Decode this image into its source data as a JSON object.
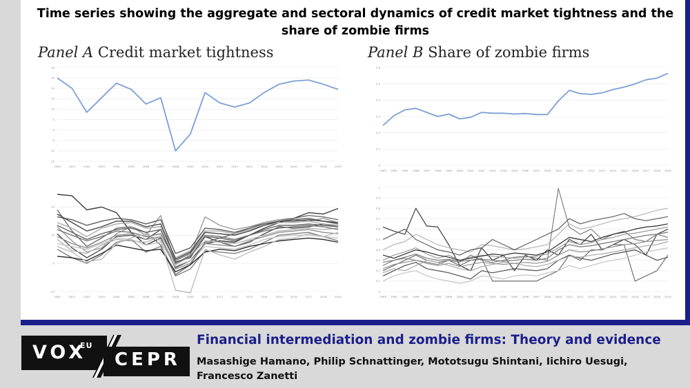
{
  "figure_title": "Time series showing the aggregate and sectoral dynamics of credit market tightness and the share of zombie firms",
  "panel_a": {
    "label": "Panel A",
    "title": "Credit market tightness"
  },
  "panel_b": {
    "label": "Panel B",
    "title": "Share of zombie firms"
  },
  "footer": {
    "logo_vox": "VOX",
    "logo_eu": "EU",
    "logo_cepr": "CEPR",
    "column_title": "Financial intermediation and zombie firms: Theory and evidence",
    "authors": "Masashige Hamano, Philip Schnattinger, Mototsugu Shintani, Iichiro Uesugi, Francesco Zanetti"
  },
  "colors": {
    "frame": "#1a1f8c",
    "aggregate_line": "#7b9fd6",
    "sector_lines": "#555555"
  },
  "chart_data": [
    {
      "id": "A-aggregate",
      "type": "line",
      "x": [
        "2000",
        "2001",
        "2002",
        "2003",
        "2004",
        "2005",
        "2006",
        "2007",
        "2008",
        "2009",
        "2010",
        "2011",
        "2012",
        "2013",
        "2014",
        "2015",
        "2016",
        "2017",
        "2018",
        "2019"
      ],
      "ylim": [
        -15,
        30
      ],
      "yticks": [
        -15,
        -10,
        -5,
        0,
        5,
        10,
        15,
        20,
        25,
        30
      ],
      "series": [
        {
          "values": [
            25,
            20,
            8.5,
            15.5,
            22.5,
            19.5,
            12.5,
            15.5,
            -10,
            -2,
            18,
            13,
            11,
            13,
            18,
            22,
            23.5,
            24,
            22,
            19.5
          ]
        }
      ]
    },
    {
      "id": "A-sectoral",
      "type": "line",
      "x": [
        "2000",
        "2001",
        "2002",
        "2003",
        "2004",
        "2005",
        "2006",
        "2007",
        "2008",
        "2009",
        "2010",
        "2011",
        "2012",
        "2013",
        "2014",
        "2015",
        "2016",
        "2017",
        "2018",
        "2019"
      ],
      "ylim": [
        -25,
        45
      ],
      "yticks": [
        -25,
        -5,
        15,
        35
      ],
      "series": [
        {
          "values": [
            44,
            43,
            33,
            35,
            31,
            17,
            8,
            13,
            -8,
            -3,
            9,
            11,
            10,
            15,
            20,
            24,
            27,
            31,
            30,
            34
          ]
        },
        {
          "values": [
            33,
            18,
            7,
            13,
            20,
            21,
            17,
            8,
            -13,
            -6,
            10,
            13,
            16,
            20,
            24,
            26,
            27,
            29,
            28,
            26
          ]
        },
        {
          "values": [
            21,
            11,
            3,
            6,
            16,
            21,
            15,
            29,
            -5,
            1,
            28,
            22,
            19,
            21,
            24,
            26,
            26,
            25,
            27,
            24
          ]
        },
        {
          "values": [
            16,
            6,
            -1,
            5,
            14,
            15,
            12,
            19,
            -4,
            -1,
            14,
            10,
            7,
            10,
            16,
            21,
            20,
            21,
            23,
            21
          ]
        },
        {
          "values": [
            12,
            4,
            2,
            8,
            12,
            11,
            10,
            14,
            -6,
            0,
            11,
            10,
            9,
            12,
            15,
            18,
            19,
            20,
            19,
            20
          ]
        },
        {
          "values": [
            5,
            -1,
            -5,
            1,
            10,
            12,
            3,
            7,
            -14,
            -9,
            4,
            3,
            2,
            5,
            10,
            15,
            16,
            17,
            14,
            11
          ]
        },
        {
          "values": [
            0,
            -1,
            -3,
            2,
            8,
            6,
            4,
            5,
            -11,
            -6,
            3,
            5,
            4,
            7,
            9,
            11,
            12,
            13,
            12,
            10
          ]
        },
        {
          "values": [
            24,
            20,
            14,
            20,
            23,
            24,
            20,
            21,
            -1,
            4,
            18,
            18,
            16,
            19,
            22,
            24,
            24,
            25,
            23,
            22
          ]
        },
        {
          "values": [
            28,
            26,
            22,
            25,
            27,
            26,
            23,
            26,
            2,
            6,
            20,
            19,
            17,
            20,
            23,
            25,
            26,
            27,
            25,
            23
          ]
        },
        {
          "values": [
            9,
            7,
            5,
            9,
            13,
            12,
            8,
            10,
            -7,
            -3,
            7,
            6,
            5,
            8,
            12,
            14,
            15,
            15,
            14,
            13
          ]
        },
        {
          "values": [
            19,
            15,
            11,
            14,
            18,
            17,
            14,
            16,
            -3,
            2,
            15,
            14,
            12,
            15,
            18,
            20,
            21,
            22,
            21,
            19
          ]
        },
        {
          "values": [
            14,
            9,
            6,
            10,
            15,
            16,
            12,
            14,
            -9,
            -5,
            9,
            8,
            7,
            11,
            14,
            17,
            18,
            19,
            17,
            16
          ]
        },
        {
          "values": [
            30,
            24,
            18,
            21,
            25,
            25,
            21,
            23,
            -2,
            3,
            17,
            16,
            15,
            18,
            22,
            25,
            25,
            26,
            25,
            24
          ]
        },
        {
          "values": [
            7,
            3,
            -4,
            -2,
            9,
            13,
            16,
            11,
            -24,
            -26,
            5,
            1,
            -2,
            3,
            7,
            12,
            13,
            16,
            14,
            17
          ]
        },
        {
          "values": [
            22,
            17,
            12,
            16,
            19,
            20,
            17,
            19,
            -5,
            0,
            14,
            13,
            11,
            15,
            19,
            22,
            22,
            23,
            22,
            21
          ]
        }
      ]
    },
    {
      "id": "B-aggregate",
      "type": "line",
      "x": [
        "1993",
        "1994",
        "1995",
        "1996",
        "1997",
        "1998",
        "1999",
        "2000",
        "2001",
        "2002",
        "2003",
        "2004",
        "2005",
        "2006",
        "2007",
        "2008",
        "2009",
        "2010",
        "2011",
        "2012",
        "2013",
        "2014",
        "2015",
        "2016",
        "2017",
        "2018",
        "2019"
      ],
      "ylim": [
        0,
        0.6
      ],
      "yticks": [
        0,
        0.1,
        0.2,
        0.3,
        0.4,
        0.5,
        0.6
      ],
      "series": [
        {
          "values": [
            0.245,
            0.305,
            0.34,
            0.35,
            0.325,
            0.3,
            0.315,
            0.285,
            0.295,
            0.325,
            0.32,
            0.32,
            0.315,
            0.318,
            0.312,
            0.312,
            0.395,
            0.46,
            0.44,
            0.435,
            0.445,
            0.465,
            0.48,
            0.5,
            0.525,
            0.535,
            0.565
          ]
        }
      ]
    },
    {
      "id": "B-sectoral",
      "type": "line",
      "x": [
        "1993",
        "1994",
        "1995",
        "1996",
        "1997",
        "1998",
        "1999",
        "2000",
        "2001",
        "2002",
        "2003",
        "2004",
        "2005",
        "2006",
        "2007",
        "2008",
        "2009",
        "2010",
        "2011",
        "2012",
        "2013",
        "2014",
        "2015",
        "2016",
        "2017",
        "2018",
        "2019"
      ],
      "ylim": [
        0,
        1
      ],
      "yticks": [
        0,
        0.1,
        0.2,
        0.3,
        0.4,
        0.5,
        0.6,
        0.7,
        0.8,
        0.9,
        1
      ],
      "series": [
        {
          "values": [
            0.62,
            0.58,
            0.55,
            0.8,
            0.63,
            0.62,
            0.45,
            0.25,
            0.2,
            0.42,
            0.3,
            0.35,
            0.2,
            0.35,
            0.3,
            0.4,
            0.35,
            0.5,
            0.45,
            0.55,
            0.4,
            0.45,
            0.5,
            0.45,
            0.35,
            0.55,
            0.6
          ]
        },
        {
          "values": [
            0.2,
            0.25,
            0.3,
            0.35,
            0.3,
            0.28,
            0.3,
            0.25,
            0.3,
            0.32,
            0.1,
            0.1,
            0.1,
            0.1,
            0.1,
            0.15,
            0.2,
            0.35,
            0.3,
            0.4,
            0.4,
            0.45,
            0.45,
            0.1,
            0.15,
            0.2,
            0.35
          ]
        },
        {
          "values": [
            0.3,
            0.35,
            0.38,
            0.42,
            0.36,
            0.32,
            0.35,
            0.3,
            0.33,
            0.35,
            0.34,
            0.33,
            0.32,
            0.33,
            0.34,
            0.36,
            0.42,
            0.48,
            0.45,
            0.47,
            0.5,
            0.52,
            0.55,
            0.56,
            0.58,
            0.6,
            0.62
          ]
        },
        {
          "values": [
            0.15,
            0.2,
            0.25,
            0.28,
            0.22,
            0.2,
            0.18,
            0.15,
            0.12,
            0.2,
            0.18,
            0.2,
            0.22,
            0.21,
            0.2,
            0.22,
            0.3,
            0.35,
            0.32,
            0.3,
            0.33,
            0.36,
            0.38,
            0.4,
            0.35,
            0.3,
            0.33
          ]
        },
        {
          "values": [
            0.4,
            0.45,
            0.48,
            0.55,
            0.5,
            0.45,
            0.42,
            0.4,
            0.38,
            0.45,
            0.44,
            0.42,
            0.4,
            0.41,
            0.43,
            0.45,
            0.55,
            0.65,
            0.6,
            0.62,
            0.65,
            0.68,
            0.7,
            0.72,
            0.75,
            0.78,
            0.8
          ]
        },
        {
          "values": [
            0.25,
            0.3,
            0.32,
            0.3,
            0.28,
            0.26,
            0.3,
            0.28,
            0.35,
            0.3,
            0.28,
            0.3,
            0.33,
            0.34,
            0.32,
            0.3,
            0.99,
            0.62,
            0.55,
            0.6,
            0.5,
            0.55,
            0.58,
            0.5,
            0.48,
            0.55,
            0.52
          ]
        },
        {
          "values": [
            0.35,
            0.32,
            0.36,
            0.4,
            0.38,
            0.35,
            0.33,
            0.3,
            0.32,
            0.34,
            0.36,
            0.35,
            0.37,
            0.36,
            0.35,
            0.38,
            0.45,
            0.52,
            0.5,
            0.48,
            0.52,
            0.55,
            0.57,
            0.6,
            0.62,
            0.63,
            0.65
          ]
        },
        {
          "values": [
            0.18,
            0.22,
            0.2,
            0.25,
            0.3,
            0.28,
            0.25,
            0.22,
            0.2,
            0.24,
            0.26,
            0.28,
            0.27,
            0.25,
            0.24,
            0.26,
            0.3,
            0.34,
            0.33,
            0.35,
            0.36,
            0.38,
            0.4,
            0.42,
            0.44,
            0.45,
            0.48
          ]
        },
        {
          "values": [
            0.5,
            0.55,
            0.6,
            0.5,
            0.45,
            0.4,
            0.38,
            0.35,
            0.4,
            0.42,
            0.5,
            0.45,
            0.4,
            0.45,
            0.5,
            0.55,
            0.6,
            0.7,
            0.65,
            0.68,
            0.7,
            0.72,
            0.75,
            0.7,
            0.68,
            0.7,
            0.72
          ]
        },
        {
          "values": [
            0.1,
            0.15,
            0.18,
            0.2,
            0.15,
            0.12,
            0.1,
            0.08,
            0.1,
            0.15,
            0.14,
            0.12,
            0.15,
            0.16,
            0.15,
            0.18,
            0.2,
            0.25,
            0.22,
            0.25,
            0.28,
            0.3,
            0.32,
            0.35,
            0.38,
            0.4,
            0.42
          ]
        },
        {
          "values": [
            0.28,
            0.3,
            0.33,
            0.36,
            0.32,
            0.3,
            0.31,
            0.29,
            0.3,
            0.31,
            0.3,
            0.29,
            0.3,
            0.31,
            0.3,
            0.32,
            0.4,
            0.45,
            0.43,
            0.44,
            0.46,
            0.48,
            0.5,
            0.52,
            0.54,
            0.55,
            0.57
          ]
        },
        {
          "values": [
            0.22,
            0.26,
            0.28,
            0.3,
            0.27,
            0.25,
            0.27,
            0.24,
            0.26,
            0.28,
            0.27,
            0.26,
            0.27,
            0.28,
            0.27,
            0.29,
            0.35,
            0.4,
            0.38,
            0.39,
            0.41,
            0.43,
            0.45,
            0.46,
            0.48,
            0.49,
            0.5
          ]
        }
      ]
    }
  ]
}
